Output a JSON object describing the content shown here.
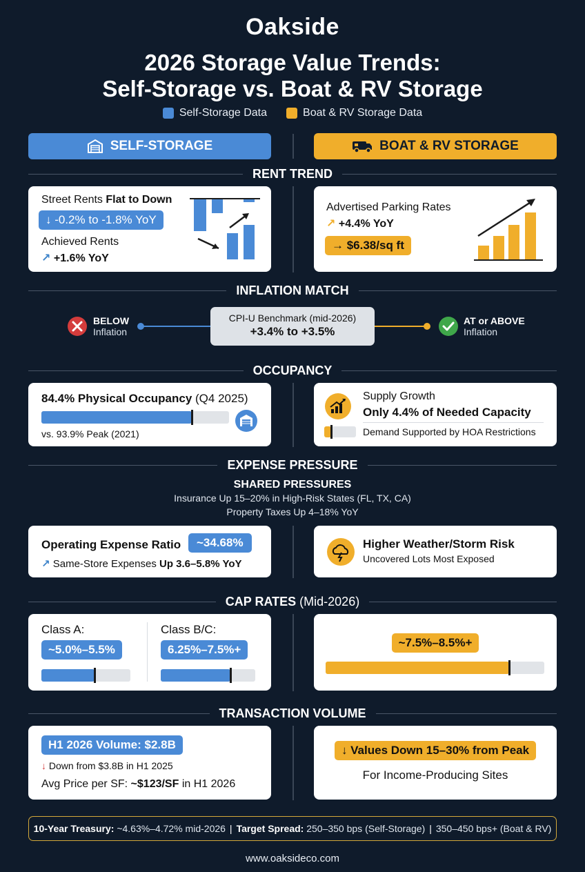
{
  "header": {
    "brand": "Oakside",
    "title_line1": "2026 Storage Value Trends:",
    "title_line2": "Self-Storage vs. Boat & RV Storage"
  },
  "legend": [
    {
      "label": "Self-Storage Data",
      "color": "#4a8ad6"
    },
    {
      "label": "Boat & RV Storage Data",
      "color": "#f0ae2b"
    }
  ],
  "banners": {
    "self": {
      "label": "SELF-STORAGE",
      "icon": "storage-building-icon"
    },
    "rv": {
      "label": "BOAT & RV STORAGE",
      "icon": "rv-truck-icon"
    }
  },
  "sections": {
    "rent": "RENT TREND",
    "inflation": "INFLATION MATCH",
    "occupancy": "OCCUPANCY",
    "expense": "EXPENSE PRESSURE",
    "cap": "CAP RATES",
    "cap_sub": "(Mid-2026)",
    "transaction": "TRANSACTION VOLUME"
  },
  "rent": {
    "self": {
      "street_label": "Street Rents",
      "street_bold": "Flat to Down",
      "street_pill": "↓ -0.2% to -1.8% YoY",
      "achieved_label": "Achieved Rents",
      "achieved_value": "+1.6% YoY"
    },
    "rv": {
      "label": "Advertised Parking Rates",
      "change": "+4.4% YoY",
      "pill": "→ $6.38/sq ft"
    }
  },
  "inflation": {
    "below_title": "BELOW",
    "below_sub": "Inflation",
    "benchmark_label": "CPI-U Benchmark (mid-2026)",
    "benchmark_value": "+3.4% to +3.5%",
    "above_title": "AT or ABOVE",
    "above_sub": "Inflation"
  },
  "occupancy": {
    "self": {
      "headline_bold": "84.4% Physical Occupancy",
      "headline_rest": " (Q4 2025)",
      "fill": 0.8,
      "peak": "vs. 93.9% Peak (2021)"
    },
    "rv": {
      "supply_label": "Supply Growth",
      "supply_bold": "Only 4.4% of Needed Capacity",
      "fill": 0.044,
      "demand": "Demand Supported by HOA Restrictions"
    }
  },
  "expense": {
    "shared_title": "SHARED PRESSURES",
    "shared_line1": "Insurance Up 15–20% in High-Risk States (FL, TX, CA)",
    "shared_line2": "Property Taxes Up 4–18% YoY",
    "self": {
      "ratio_label": "Operating Expense Ratio",
      "ratio_pill": "~34.68%",
      "same_store_label": "Same-Store Expenses",
      "same_store_bold": "Up 3.6–5.8% YoY"
    },
    "rv": {
      "title": "Higher Weather/Storm Risk",
      "sub": "Uncovered Lots Most Exposed"
    }
  },
  "cap_rates": {
    "self": [
      {
        "label": "Class A:",
        "pill": "~5.0%–5.5%",
        "fill": 0.6
      },
      {
        "label": "Class B/C:",
        "pill": "6.25%–7.5%+",
        "fill": 0.74
      }
    ],
    "rv": {
      "pill": "~7.5%–8.5%+",
      "fill": 0.84
    }
  },
  "transaction": {
    "self": {
      "volume_pill": "H1 2026 Volume: $2.8B",
      "down_text": "Down from $3.8B in H1 2025",
      "avg_label": "Avg Price per SF:",
      "avg_bold": "~$123/SF",
      "avg_rest": "in H1 2026"
    },
    "rv": {
      "pill": "↓ Values Down 15–30% from Peak",
      "sub": "For Income-Producing Sites"
    }
  },
  "footer": {
    "treasury_label": "10-Year Treasury:",
    "treasury_value": "~4.63%–4.72% mid-2026",
    "spread_label": "Target Spread:",
    "spread_self": "250–350 bps (Self-Storage)",
    "spread_rv": "350–450 bps+ (Boat & RV)",
    "website": "www.oaksideco.com"
  }
}
